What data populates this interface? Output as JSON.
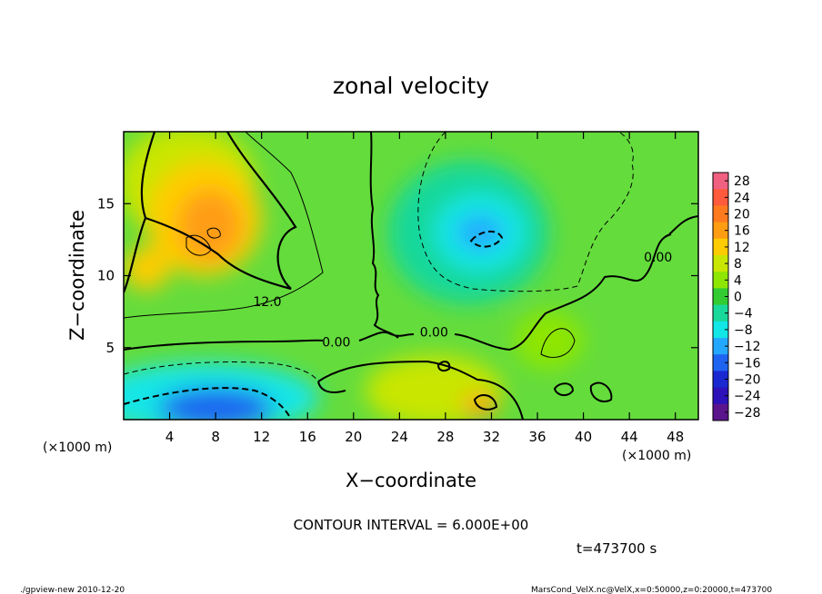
{
  "chart_data": {
    "type": "contour",
    "title": "zonal velocity",
    "xlabel": "X−coordinate",
    "ylabel": "Z−coordinate",
    "x_unit_label": "(×1000 m)",
    "z_unit_label": "(×1000 m)",
    "xlim": [
      0,
      50
    ],
    "ylim": [
      0,
      20
    ],
    "x_ticks": [
      4,
      8,
      12,
      16,
      20,
      24,
      28,
      32,
      36,
      40,
      44,
      48
    ],
    "y_ticks": [
      5,
      10,
      15
    ],
    "colorbar_ticks": [
      "28",
      "24",
      "20",
      "16",
      "12",
      "8",
      "4",
      "0",
      "−4",
      "−8",
      "−12",
      "−16",
      "−20",
      "−24",
      "−28"
    ],
    "colorbar_colors": [
      "#f06080",
      "#ff5a3c",
      "#ff7a1e",
      "#ff9d12",
      "#ffcc00",
      "#c8e600",
      "#8ee600",
      "#32cc32",
      "#18d89a",
      "#12e6e6",
      "#24a8ff",
      "#1e64f0",
      "#1a28d2",
      "#2c12b8",
      "#5a148c"
    ],
    "contour_labels": [
      {
        "text": "12.0",
        "x": 12.5,
        "z": 8.2
      },
      {
        "text": "0.00",
        "x": 18.5,
        "z": 5.4
      },
      {
        "text": "0.00",
        "x": 27.0,
        "z": 6.1
      },
      {
        "text": "0.00",
        "x": 46.5,
        "z": 11.3
      }
    ],
    "field_blobs": [
      {
        "x": 5.5,
        "z": 16.5,
        "rx": 6,
        "rz": 4,
        "v": 8
      },
      {
        "x": 7,
        "z": 14,
        "rx": 5,
        "rz": 4,
        "v": 14
      },
      {
        "x": 7.5,
        "z": 13.5,
        "rx": 2.8,
        "rz": 2.5,
        "v": 17
      },
      {
        "x": 2,
        "z": 10.5,
        "rx": 2,
        "rz": 1.5,
        "v": 14
      },
      {
        "x": 30,
        "z": 13,
        "rx": 7,
        "rz": 5,
        "v": -4
      },
      {
        "x": 31,
        "z": 13,
        "rx": 4,
        "rz": 2.7,
        "v": -8
      },
      {
        "x": 31,
        "z": 13,
        "rx": 2,
        "rz": 1.2,
        "v": -10
      },
      {
        "x": 7,
        "z": 1.5,
        "rx": 10,
        "rz": 2.5,
        "v": -8
      },
      {
        "x": 8,
        "z": 0.8,
        "rx": 5,
        "rz": 1.4,
        "v": -14
      },
      {
        "x": 27,
        "z": 2,
        "rx": 6,
        "rz": 2.5,
        "v": 8
      },
      {
        "x": 31,
        "z": 1,
        "rx": 1.5,
        "rz": 0.8,
        "v": 16
      },
      {
        "x": 37,
        "z": 5.5,
        "rx": 3,
        "rz": 2,
        "v": 4
      }
    ],
    "contour_interval": "CONTOUR INTERVAL = 6.000E+00",
    "time": "t=473700 s"
  },
  "footer": {
    "left": "./gpview-new  2010-12-20",
    "right": "MarsCond_VelX.nc@VelX,x=0:50000,z=0:20000,t=473700"
  }
}
